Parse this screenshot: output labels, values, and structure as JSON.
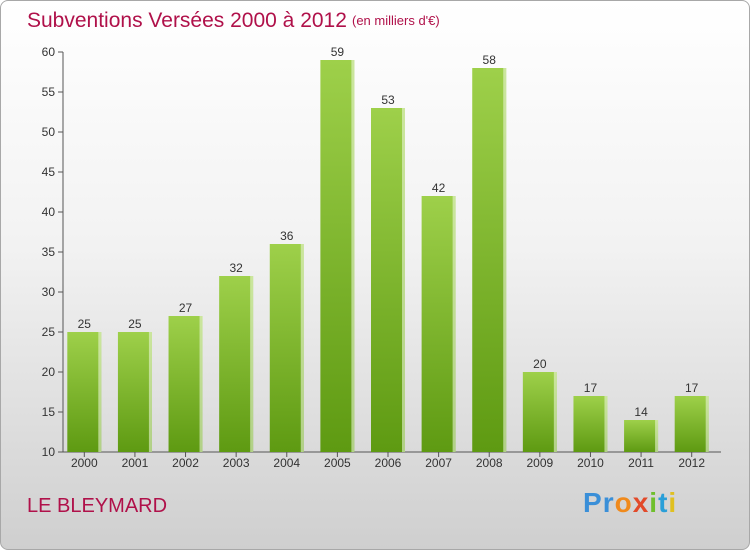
{
  "chart_data": {
    "type": "bar",
    "title": "Subventions Versées 2000 à 2012",
    "subtitle": "(en milliers d'€)",
    "categories": [
      "2000",
      "2001",
      "2002",
      "2003",
      "2004",
      "2005",
      "2006",
      "2007",
      "2008",
      "2009",
      "2010",
      "2011",
      "2012"
    ],
    "values": [
      25,
      25,
      27,
      32,
      36,
      59,
      53,
      42,
      58,
      20,
      17,
      14,
      17
    ],
    "ylim": [
      10,
      60
    ],
    "yticks": [
      10,
      15,
      20,
      25,
      30,
      35,
      40,
      45,
      50,
      55,
      60
    ],
    "grid": false,
    "bar_color_top": "#9ed04a",
    "bar_color_bottom": "#5e9a12"
  },
  "commune": "LE BLEYMARD",
  "logo": {
    "letters": [
      "P",
      "r",
      "o",
      "x",
      "i",
      "t",
      "i"
    ],
    "colors": [
      "#3a8fd8",
      "#3a8fd8",
      "#f08a1c",
      "#e24a2a",
      "#6fbf2c",
      "#2a9fd8",
      "#e0c020"
    ]
  }
}
